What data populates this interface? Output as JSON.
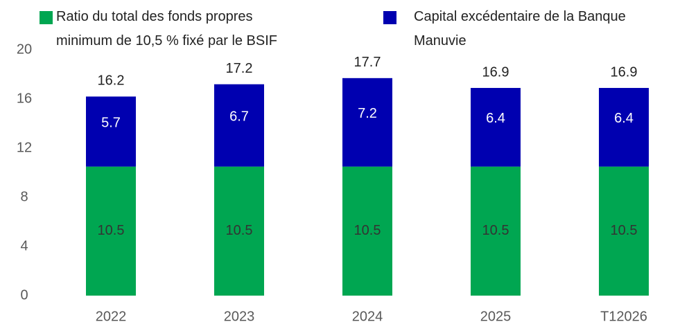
{
  "chart_data": {
    "type": "stacked_bar",
    "categories": [
      "2022",
      "2023",
      "2024",
      "2025",
      "T12026"
    ],
    "series": [
      {
        "name": "Ratio du total des fonds propres minimum de 10,5 % fixé par le BSIF",
        "color": "#00A651",
        "values": [
          10.5,
          10.5,
          10.5,
          10.5,
          10.5
        ]
      },
      {
        "name": "Capital excédentaire de la Banque Manuvie",
        "color": "#0000B0",
        "values": [
          5.7,
          6.7,
          7.2,
          6.4,
          6.4
        ]
      }
    ],
    "totals": [
      16.2,
      17.2,
      17.7,
      16.9,
      16.9
    ],
    "ylim": [
      0,
      20
    ],
    "yticks": [
      0,
      4,
      8,
      12,
      16,
      20
    ],
    "grid": false
  }
}
